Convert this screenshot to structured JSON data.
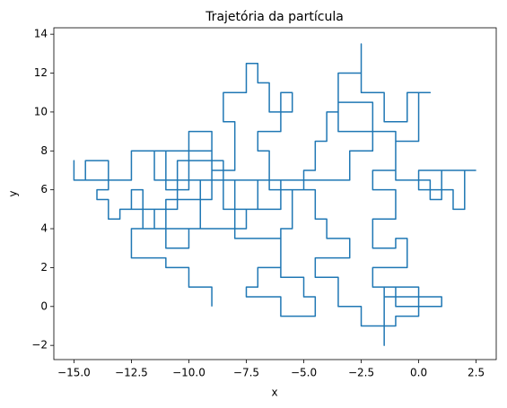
{
  "chart_data": {
    "type": "line",
    "title": "Trajetória da partícula",
    "xlabel": "x",
    "ylabel": "y",
    "color": "#1f77b4",
    "xlim": [
      -15.875,
      3.375
    ],
    "ylim": [
      -2.73,
      14.33
    ],
    "xticks": [
      {
        "value": -15,
        "label": "−15.0"
      },
      {
        "value": -12.5,
        "label": "−12.5"
      },
      {
        "value": -10,
        "label": "−10.0"
      },
      {
        "value": -7.5,
        "label": "−7.5"
      },
      {
        "value": -5,
        "label": "−5.0"
      },
      {
        "value": -2.5,
        "label": "−2.5"
      },
      {
        "value": 0,
        "label": "0.0"
      },
      2.5
    ],
    "yticks": [
      {
        "value": -2,
        "label": "−2"
      },
      0,
      2,
      4,
      6,
      8,
      10,
      12,
      14
    ],
    "x": [
      -9,
      -9,
      -10,
      -10,
      -11,
      -11,
      -12.5,
      -12.5,
      -11.5,
      -11.5,
      -13,
      -13,
      -13.5,
      -13.5,
      -14,
      -14,
      -13.5,
      -13.5,
      -14.5,
      -14.5,
      -15,
      -15,
      -15,
      -12.5,
      -12.5,
      -11,
      -11,
      -10,
      -10,
      -9,
      -9,
      -8,
      -8,
      -8.5,
      -8.5,
      -7.5,
      -7.5,
      -7,
      -7,
      -6.5,
      -6.5,
      -5.5,
      -5.5,
      -6,
      -6,
      -7,
      -7,
      -6.5,
      -6.5,
      -5,
      -5,
      -4.5,
      -4.5,
      -4,
      -4,
      -3.5,
      -3.5,
      -2.5,
      -2.5,
      -2.5,
      -1.5,
      -1.5,
      -0.5,
      -0.5,
      0.5,
      0,
      0,
      -1,
      -1,
      -2,
      -2,
      -1,
      -1,
      -2,
      -2,
      -1,
      -1,
      -0.5,
      -0.5,
      -2,
      -2,
      -1,
      -1,
      1,
      1,
      -1.5,
      -1.5,
      -1,
      -1,
      0,
      0,
      -1.5,
      -1.5,
      -1.5,
      -2.5,
      -2.5,
      -3.5,
      -3.5,
      -4.5,
      -4.5,
      -3,
      -3,
      -4,
      -4,
      -4.5,
      -4.5,
      -5.5,
      -5.5,
      -6,
      -6,
      -7,
      -7,
      -7.5,
      -7.5,
      -6,
      -6,
      -4.5,
      -4.5,
      -5,
      -5,
      -6,
      -6,
      -8,
      -8,
      -9.5,
      -9.5,
      -12,
      -12,
      -12.5,
      -12.5,
      -10.5,
      -10.5,
      -8.5,
      -8.5,
      -7,
      -7,
      -6,
      -6,
      -7.5,
      -7.5,
      -10,
      -10,
      -11,
      -11,
      -9,
      -9,
      -11.5,
      -11.5,
      -3,
      -3,
      -2,
      -2,
      -3.5,
      -3.5,
      -1,
      -1,
      0.5,
      0.5,
      1,
      1,
      2,
      2,
      1.5,
      1.5,
      0,
      0,
      2.5
    ],
    "y": [
      0,
      1,
      1,
      2,
      2,
      2.5,
      2.5,
      4,
      4,
      5,
      5,
      4.5,
      4.5,
      5.5,
      5.5,
      6,
      6,
      7.5,
      7.5,
      6.5,
      6.5,
      7.5,
      6.5,
      6.5,
      8,
      8,
      6,
      6,
      9,
      9,
      7,
      7,
      9.5,
      9.5,
      11,
      11,
      12.5,
      12.5,
      11.5,
      11.5,
      10,
      10,
      11,
      11,
      9,
      9,
      8,
      8,
      6,
      6,
      7,
      7,
      8.5,
      8.5,
      10,
      10,
      12,
      12,
      13.5,
      11,
      11,
      9.5,
      9.5,
      11,
      11,
      11,
      8.5,
      8.5,
      7,
      7,
      6,
      6,
      4.5,
      4.5,
      3,
      3,
      3.5,
      3.5,
      2,
      2,
      1,
      1,
      0,
      0,
      0.5,
      0.5,
      -1,
      -1,
      -0.5,
      -0.5,
      1,
      1,
      -2,
      -1,
      -1,
      0,
      0,
      1.5,
      1.5,
      2.5,
      2.5,
      3.5,
      3.5,
      4.5,
      4.5,
      6,
      6,
      4,
      4,
      2,
      2,
      1,
      1,
      0.5,
      0.5,
      -0.5,
      -0.5,
      0.5,
      0.5,
      1.5,
      1.5,
      3.5,
      3.5,
      6.5,
      6.5,
      4,
      4,
      6,
      6,
      5,
      5,
      7.5,
      7.5,
      5,
      5,
      6.5,
      6.5,
      5,
      5,
      4,
      4,
      3,
      3,
      5.5,
      5.5,
      8,
      8,
      6.5,
      6.5,
      8,
      8,
      10.5,
      10.5,
      9,
      9,
      6.5,
      6.5,
      5.5,
      5.5,
      7,
      7,
      5,
      5,
      6,
      6,
      7,
      7
    ]
  }
}
